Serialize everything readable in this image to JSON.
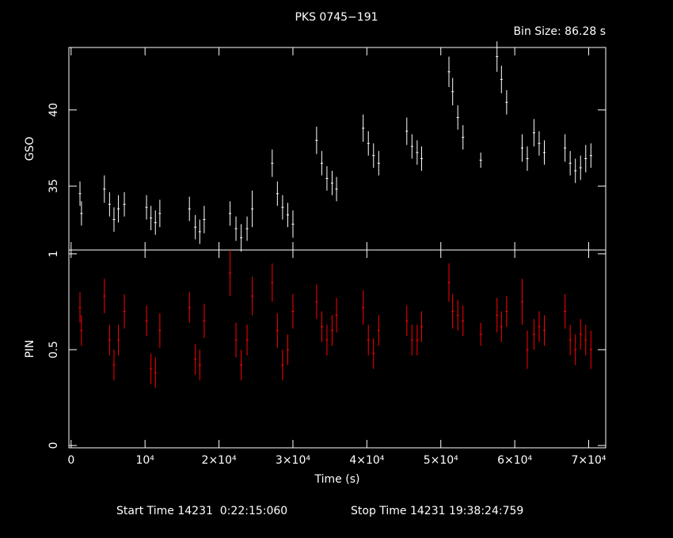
{
  "title": "PKS 0745−191",
  "bin_size": "Bin Size: 86.28 s",
  "footer": {
    "start": "Start Time 14231  0:22:15:060",
    "stop": "Stop Time 14231 19:38:24:759"
  },
  "chart_data": [
    {
      "type": "scatter",
      "ylabel": "GSO",
      "color": "#ffffff",
      "xlim": [
        -300,
        72300
      ],
      "ylim": [
        30.8,
        44.1
      ],
      "yticks": [
        35,
        40
      ],
      "x": [
        1200,
        1400,
        4500,
        5200,
        5800,
        6400,
        7200,
        10200,
        10800,
        11400,
        12000,
        16000,
        16800,
        17400,
        18000,
        21500,
        22300,
        23000,
        23800,
        24500,
        27200,
        27900,
        28600,
        29300,
        30000,
        33200,
        33900,
        34600,
        35300,
        35900,
        39500,
        40200,
        40900,
        41600,
        45400,
        46100,
        46800,
        47400,
        51100,
        51600,
        52300,
        53000,
        55400,
        57600,
        58200,
        58900,
        61000,
        61700,
        62600,
        63300,
        64000,
        66800,
        67500,
        68200,
        68900,
        69600,
        70300
      ],
      "values": [
        34.5,
        33.2,
        34.8,
        33.8,
        32.8,
        33.5,
        33.8,
        33.6,
        32.9,
        32.6,
        33.2,
        33.5,
        32.3,
        32.0,
        32.8,
        33.2,
        32.2,
        31.6,
        32.2,
        33.5,
        36.5,
        34.5,
        33.6,
        33.1,
        32.5,
        38.0,
        36.5,
        35.5,
        35.2,
        34.8,
        38.8,
        37.8,
        37.0,
        36.5,
        38.6,
        37.6,
        37.2,
        36.8,
        42.5,
        41.2,
        39.5,
        38.2,
        36.7,
        43.5,
        42.0,
        40.5,
        37.5,
        36.8,
        38.5,
        37.8,
        37.2,
        37.5,
        36.5,
        36.0,
        36.2,
        36.8,
        37.0
      ],
      "errors": [
        0.8,
        0.8,
        0.9,
        0.8,
        0.8,
        0.9,
        0.8,
        0.8,
        0.8,
        0.8,
        0.9,
        0.8,
        0.8,
        0.8,
        0.9,
        0.8,
        0.8,
        0.9,
        0.8,
        1.2,
        0.9,
        0.8,
        0.8,
        0.8,
        0.9,
        0.9,
        0.8,
        0.8,
        0.8,
        0.8,
        0.9,
        0.8,
        0.8,
        0.8,
        0.9,
        0.8,
        0.8,
        0.8,
        1.0,
        0.9,
        0.8,
        0.8,
        0.5,
        1.0,
        0.9,
        0.8,
        0.9,
        0.8,
        0.9,
        0.8,
        0.8,
        0.9,
        0.8,
        0.8,
        0.8,
        0.9,
        0.8
      ]
    },
    {
      "type": "scatter",
      "ylabel": "PIN",
      "xlabel": "Time (s)",
      "color": "#ff0000",
      "xlim": [
        -300,
        72300
      ],
      "ylim": [
        -0.012,
        1.02
      ],
      "yticks": [
        0,
        0.5,
        1
      ],
      "xticks": [
        0,
        {
          "value": 10000,
          "label": "10⁴"
        },
        {
          "value": 20000,
          "label": "2×10⁴"
        },
        {
          "value": 30000,
          "label": "3×10⁴"
        },
        {
          "value": 40000,
          "label": "4×10⁴"
        },
        {
          "value": 50000,
          "label": "5×10⁴"
        },
        {
          "value": 60000,
          "label": "6×10⁴"
        },
        {
          "value": 70000,
          "label": "7×10⁴"
        }
      ],
      "x": [
        1200,
        1400,
        4500,
        5200,
        5800,
        6400,
        7200,
        10200,
        10800,
        11400,
        12000,
        16000,
        16800,
        17400,
        18000,
        21500,
        22300,
        23000,
        23800,
        24500,
        27200,
        27900,
        28600,
        29300,
        30000,
        33200,
        33900,
        34600,
        35300,
        35900,
        39500,
        40200,
        40900,
        41600,
        45400,
        46100,
        46800,
        47400,
        51100,
        51600,
        52300,
        53000,
        55400,
        57600,
        58200,
        58900,
        61000,
        61700,
        62600,
        63300,
        64000,
        66800,
        67500,
        68200,
        68900,
        69600,
        70300
      ],
      "values": [
        0.72,
        0.6,
        0.78,
        0.55,
        0.42,
        0.55,
        0.7,
        0.65,
        0.4,
        0.38,
        0.6,
        0.72,
        0.45,
        0.42,
        0.65,
        0.9,
        0.55,
        0.42,
        0.55,
        0.78,
        0.85,
        0.6,
        0.42,
        0.5,
        0.7,
        0.75,
        0.62,
        0.55,
        0.6,
        0.68,
        0.72,
        0.55,
        0.48,
        0.6,
        0.65,
        0.55,
        0.55,
        0.62,
        0.85,
        0.7,
        0.68,
        0.65,
        0.58,
        0.68,
        0.62,
        0.7,
        0.75,
        0.5,
        0.58,
        0.62,
        0.6,
        0.7,
        0.55,
        0.5,
        0.58,
        0.55,
        0.5
      ],
      "errors": [
        0.08,
        0.08,
        0.09,
        0.08,
        0.08,
        0.08,
        0.09,
        0.08,
        0.08,
        0.08,
        0.09,
        0.08,
        0.08,
        0.08,
        0.09,
        0.12,
        0.09,
        0.08,
        0.08,
        0.1,
        0.1,
        0.09,
        0.08,
        0.08,
        0.09,
        0.09,
        0.08,
        0.08,
        0.08,
        0.09,
        0.09,
        0.08,
        0.08,
        0.08,
        0.08,
        0.08,
        0.08,
        0.08,
        0.1,
        0.09,
        0.08,
        0.08,
        0.06,
        0.09,
        0.08,
        0.08,
        0.12,
        0.1,
        0.08,
        0.08,
        0.08,
        0.09,
        0.08,
        0.08,
        0.08,
        0.08,
        0.1
      ]
    }
  ]
}
